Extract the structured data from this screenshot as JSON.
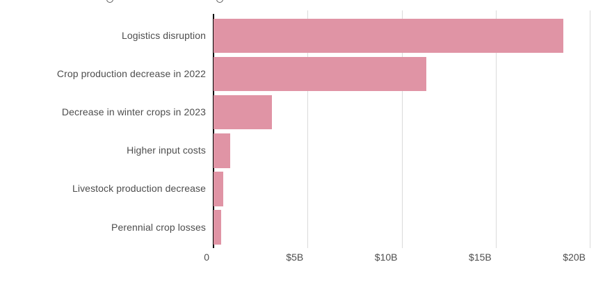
{
  "chart_data": {
    "type": "bar",
    "orientation": "horizontal",
    "title": "",
    "title_clipped_out_of_view": true,
    "categories": [
      "Logistics disruption",
      "Crop production decrease in 2022",
      "Decrease in winter crops in 2023",
      "Higher input costs",
      "Livestock production decrease",
      "Perennial crop losses"
    ],
    "values": [
      18.6,
      11.3,
      3.1,
      0.9,
      0.5,
      0.4
    ],
    "value_unit": "$B",
    "x_ticks": [
      {
        "value": 0,
        "label": "0"
      },
      {
        "value": 5,
        "label": "$5B"
      },
      {
        "value": 10,
        "label": "$10B"
      },
      {
        "value": 15,
        "label": "$15B"
      },
      {
        "value": 20,
        "label": "$20B"
      }
    ],
    "xlim": [
      0,
      21.2
    ],
    "grid": true,
    "legend": "none",
    "colors": {
      "bar": "#e094a5",
      "axis_line": "#000000",
      "gridline": "#dadada",
      "label_text": "#4d4d4d"
    }
  }
}
